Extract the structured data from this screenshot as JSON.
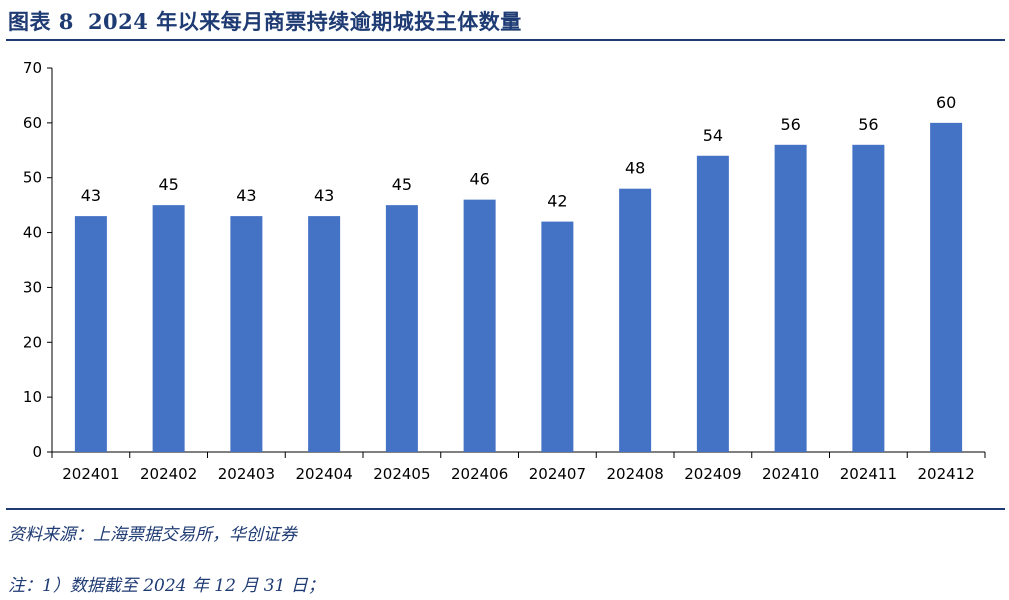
{
  "figure": {
    "label": "图表 8",
    "title": "2024 年以来每月商票持续逾期城投主体数量"
  },
  "source": "资料来源：上海票据交易所，华创证券",
  "note": "注：1）数据截至 2024 年 12 月 31 日；",
  "colors": {
    "bar": "#4472c4",
    "title": "#1f3b73",
    "axis": "#000000"
  },
  "chart_data": {
    "type": "bar",
    "title": "",
    "xlabel": "",
    "ylabel": "",
    "categories": [
      "202401",
      "202402",
      "202403",
      "202404",
      "202405",
      "202406",
      "202407",
      "202408",
      "202409",
      "202410",
      "202411",
      "202412"
    ],
    "values": [
      43,
      45,
      43,
      43,
      45,
      46,
      42,
      48,
      54,
      56,
      56,
      60
    ],
    "ylim": [
      0,
      70
    ],
    "yticks": [
      0,
      10,
      20,
      30,
      40,
      50,
      60,
      70
    ],
    "grid": false,
    "legend": "none",
    "data_labels": true
  }
}
